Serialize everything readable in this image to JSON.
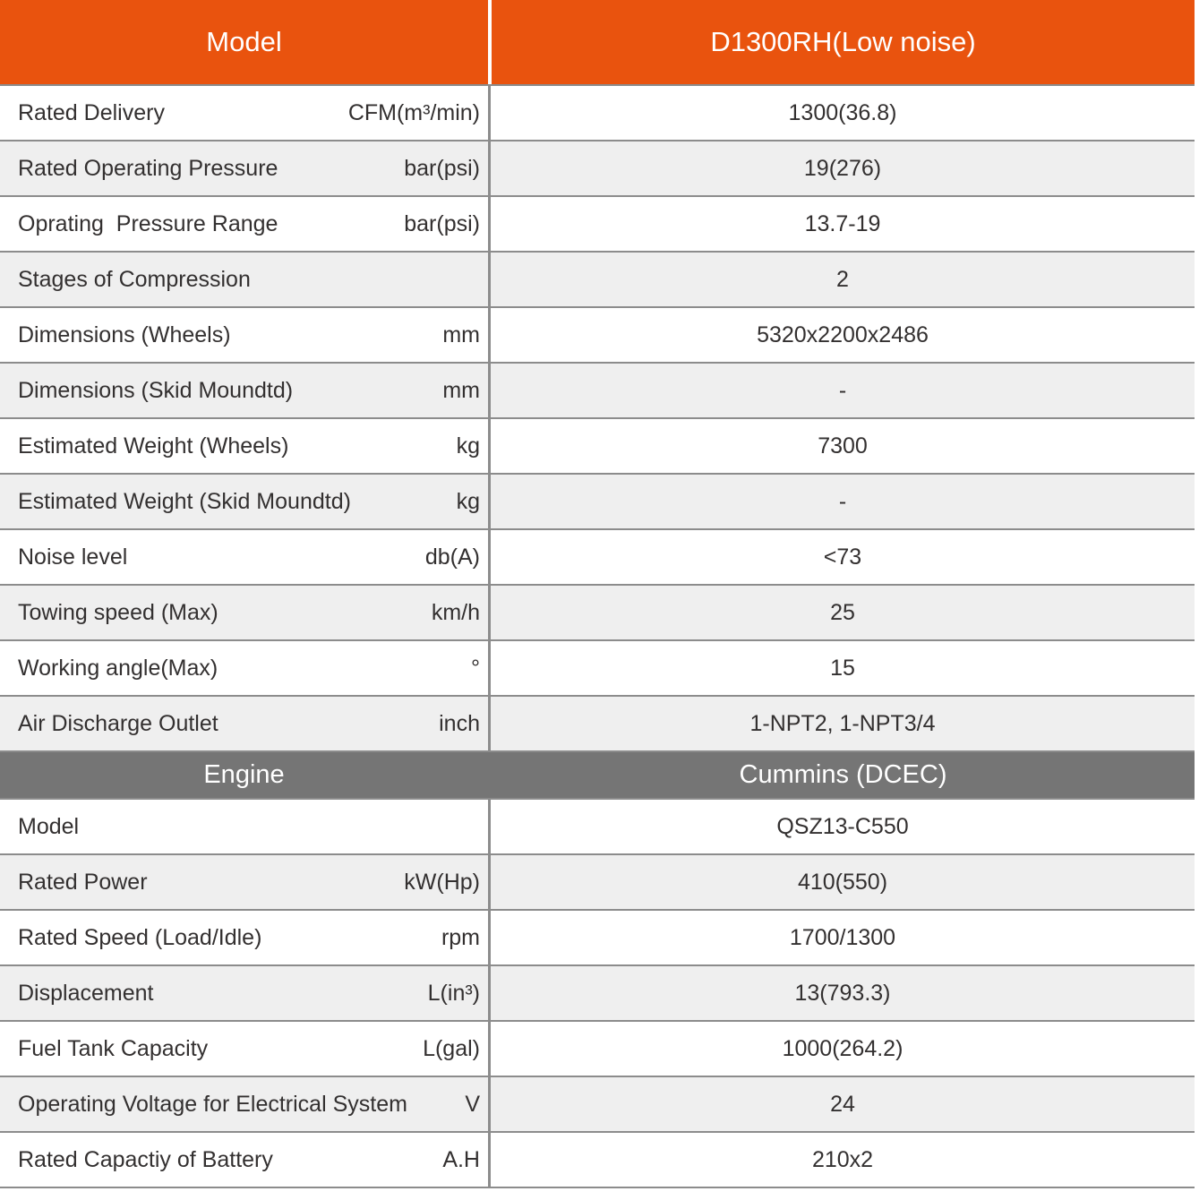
{
  "colors": {
    "header_orange": "#e9530e",
    "engine_header_gray": "#757575",
    "row_alternate": "#efefef",
    "row_border": "#8c8c8c",
    "text": "#333030",
    "header_text": "#ffffff"
  },
  "table": {
    "header": {
      "col1": "Model",
      "col2": "D1300RH(Low noise)"
    },
    "spec_rows": [
      {
        "label": "Rated Delivery",
        "unit": "CFM(m³/min)",
        "value": "1300(36.8)"
      },
      {
        "label": "Rated Operating Pressure",
        "unit": "bar(psi)",
        "value": "19(276)"
      },
      {
        "label": "Oprating  Pressure Range",
        "unit": "bar(psi)",
        "value": "13.7-19"
      },
      {
        "label": "Stages of Compression",
        "unit": "",
        "value": "2"
      },
      {
        "label": "Dimensions (Wheels)",
        "unit": "mm",
        "value": "5320x2200x2486"
      },
      {
        "label": "Dimensions (Skid Moundtd)",
        "unit": "mm",
        "value": "-"
      },
      {
        "label": "Estimated Weight (Wheels)",
        "unit": "kg",
        "value": "7300"
      },
      {
        "label": "Estimated Weight (Skid Moundtd)",
        "unit": "kg",
        "value": "-"
      },
      {
        "label": "Noise level",
        "unit": "db(A)",
        "value": "<73"
      },
      {
        "label": "Towing speed (Max)",
        "unit": "km/h",
        "value": "25"
      },
      {
        "label": "Working angle(Max)",
        "unit": "°",
        "value": "15"
      },
      {
        "label": "Air Discharge Outlet",
        "unit": "inch",
        "value": "1-NPT2, 1-NPT3/4"
      }
    ],
    "engine_header": {
      "col1": "Engine",
      "col2": "Cummins (DCEC)"
    },
    "engine_rows": [
      {
        "label": "Model",
        "unit": "",
        "value": "QSZ13-C550"
      },
      {
        "label": "Rated Power",
        "unit": "kW(Hp)",
        "value": "410(550)"
      },
      {
        "label": "Rated Speed (Load/Idle)",
        "unit": "rpm",
        "value": "1700/1300"
      },
      {
        "label": "Displacement",
        "unit": "L(in³)",
        "value": "13(793.3)"
      },
      {
        "label": "Fuel Tank Capacity",
        "unit": "L(gal)",
        "value": "1000(264.2)"
      },
      {
        "label": "Operating Voltage for Electrical System",
        "unit": "V",
        "value": "24"
      },
      {
        "label": "Rated Capactiy of Battery",
        "unit": "A.H",
        "value": "210x2"
      }
    ]
  }
}
